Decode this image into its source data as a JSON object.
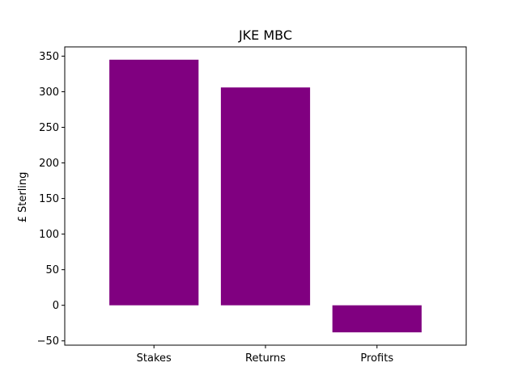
{
  "chart_data": {
    "type": "bar",
    "title": "JKE MBC",
    "xlabel": "",
    "ylabel": "£ Sterling",
    "categories": [
      "Stakes",
      "Returns",
      "Profits"
    ],
    "values": [
      345,
      306,
      -38
    ],
    "ylim": [
      -56,
      363
    ],
    "yticks": [
      -50,
      0,
      50,
      100,
      150,
      200,
      250,
      300,
      350
    ],
    "ytick_labels": [
      "−50",
      "0",
      "50",
      "100",
      "150",
      "200",
      "250",
      "300",
      "350"
    ],
    "bar_color": "#800080",
    "grid": false,
    "legend": false
  }
}
